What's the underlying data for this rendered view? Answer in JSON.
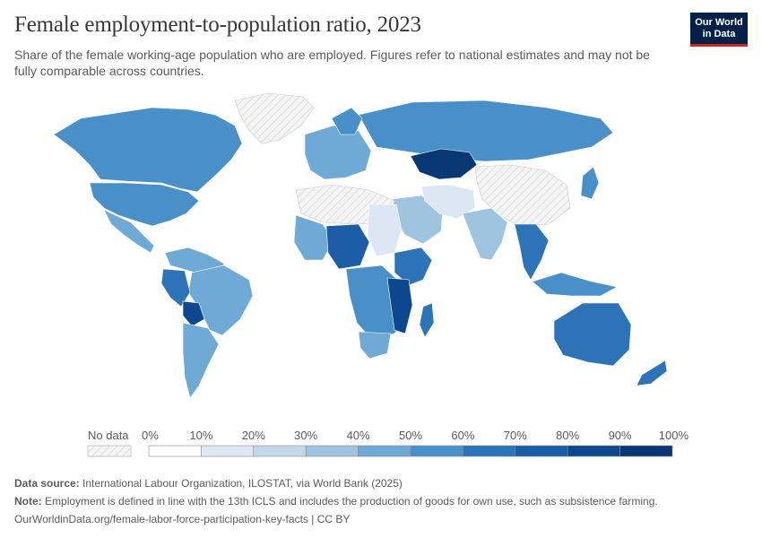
{
  "header": {
    "title": "Female employment-to-population ratio, 2023",
    "subtitle": "Share of the female working-age population who are employed. Figures refer to national estimates and may not be fully comparable across countries."
  },
  "logo": {
    "line1": "Our World",
    "line2": "in Data"
  },
  "legend": {
    "no_data_label": "No data",
    "ticks": [
      "0%",
      "10%",
      "20%",
      "30%",
      "40%",
      "50%",
      "60%",
      "70%",
      "80%",
      "90%",
      "100%"
    ],
    "colors": [
      "#ffffff",
      "#dce7f3",
      "#c2d6ec",
      "#9ec4e0",
      "#6faad6",
      "#4a90c8",
      "#2c73b8",
      "#1a5ca6",
      "#0d488f",
      "#083774",
      "#052a5c"
    ]
  },
  "map_colors": {
    "land_default": "#4a90c8",
    "no_data": "#f0f0f0",
    "ocean": "#ffffff"
  },
  "footer": {
    "source_label": "Data source:",
    "source_text": "International Labour Organization, ILOSTAT, via World Bank (2025)",
    "note_label": "Note:",
    "note_text": "Employment is defined in line with the 13th ICLS and includes the production of goods for own use, such as subsistence farming.",
    "url": "OurWorldinData.org/female-labor-force-participation-key-facts | CC BY"
  }
}
